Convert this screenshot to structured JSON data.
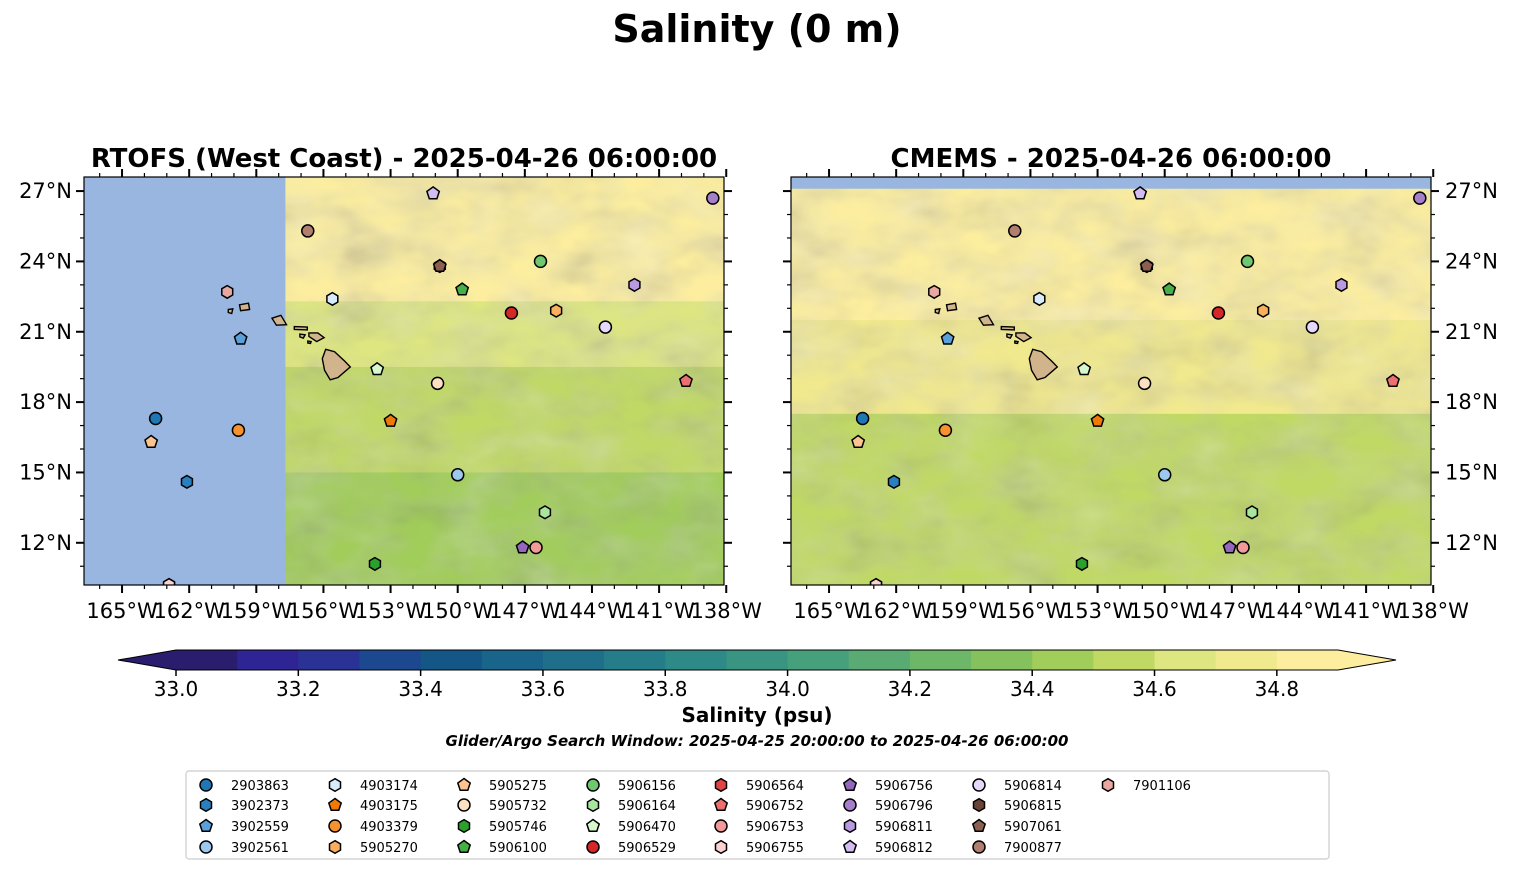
{
  "figure": {
    "title": "Salinity (0 m)",
    "search_window": "Glider/Argo Search Window: 2025-04-25 20:00:00 to 2025-04-26 06:00:00"
  },
  "chart_data": [
    {
      "type": "heatmap",
      "title": "RTOFS (West Coast) - 2025-04-26 06:00:00",
      "x_ticks": [
        "165°W",
        "162°W",
        "159°W",
        "156°W",
        "153°W",
        "150°W",
        "147°W",
        "144°W",
        "141°W",
        "138°W"
      ],
      "y_ticks": [
        "27°N",
        "24°N",
        "21°N",
        "18°N",
        "15°N",
        "12°N"
      ],
      "xlim": [
        -166.7,
        -138.1
      ],
      "ylim": [
        10.2,
        27.6
      ],
      "no_data_region": {
        "lon_max": -157.7,
        "color": "#98b6e0"
      },
      "regimes": [
        {
          "lat_min": 22.3,
          "salinity": 34.95
        },
        {
          "lat_min": 19.5,
          "salinity": 34.65
        },
        {
          "lat_min": 15.0,
          "salinity": 34.5
        },
        {
          "lat_min": 10.2,
          "salinity": 34.4
        }
      ]
    },
    {
      "type": "heatmap",
      "title": "CMEMS - 2025-04-26 06:00:00",
      "x_ticks": [
        "165°W",
        "162°W",
        "159°W",
        "156°W",
        "153°W",
        "150°W",
        "147°W",
        "144°W",
        "141°W",
        "138°W"
      ],
      "y_ticks": [
        "27°N",
        "24°N",
        "21°N",
        "18°N",
        "15°N",
        "12°N"
      ],
      "xlim": [
        -166.7,
        -138.1
      ],
      "ylim": [
        10.2,
        27.6
      ],
      "no_data_region": {
        "lat_min": 27.1,
        "color": "#98b6e0"
      },
      "regimes": [
        {
          "lat_min": 21.5,
          "salinity": 34.95
        },
        {
          "lat_min": 17.5,
          "salinity": 34.7
        },
        {
          "lat_min": 10.2,
          "salinity": 34.5
        }
      ]
    }
  ],
  "colorbar": {
    "label": "Salinity (psu)",
    "min": 33.0,
    "max": 34.9,
    "step": 0.1,
    "ticks": [
      "33.0",
      "33.2",
      "33.4",
      "33.6",
      "33.8",
      "34.0",
      "34.2",
      "34.4",
      "34.6",
      "34.8"
    ],
    "colors": [
      "#2b1d6d",
      "#2e2494",
      "#2b3296",
      "#1c4890",
      "#145787",
      "#19648b",
      "#1f6f8b",
      "#267d8a",
      "#2e8a86",
      "#3a9482",
      "#47a07c",
      "#59ab73",
      "#6cb768",
      "#85c15c",
      "#a1cd5a",
      "#c0d965",
      "#dde680",
      "#f1e98d",
      "#fcee9e"
    ],
    "extend_under": "#2b1d6d",
    "extend_over": "#fcee9e"
  },
  "legend": {
    "entries": [
      {
        "label": "2903863",
        "marker": "circle",
        "color": "#1f77b4"
      },
      {
        "label": "3902373",
        "marker": "hexagon",
        "color": "#2a7fbf"
      },
      {
        "label": "3902559",
        "marker": "pentagon",
        "color": "#5aa0da"
      },
      {
        "label": "3902561",
        "marker": "circle",
        "color": "#9ec9ef"
      },
      {
        "label": "4903174",
        "marker": "hexagon",
        "color": "#d7ebfb"
      },
      {
        "label": "4903175",
        "marker": "pentagon",
        "color": "#f07a08"
      },
      {
        "label": "4903379",
        "marker": "circle",
        "color": "#f8922e"
      },
      {
        "label": "5905270",
        "marker": "hexagon",
        "color": "#fbae5c"
      },
      {
        "label": "5905275",
        "marker": "pentagon",
        "color": "#fcc48e"
      },
      {
        "label": "5905732",
        "marker": "circle",
        "color": "#fde0c4"
      },
      {
        "label": "5905746",
        "marker": "hexagon",
        "color": "#2ca02c"
      },
      {
        "label": "5906100",
        "marker": "pentagon",
        "color": "#45b045"
      },
      {
        "label": "5906156",
        "marker": "circle",
        "color": "#6fc86f"
      },
      {
        "label": "5906164",
        "marker": "hexagon",
        "color": "#a8e6a0"
      },
      {
        "label": "5906470",
        "marker": "pentagon",
        "color": "#d6f8cc"
      },
      {
        "label": "5906529",
        "marker": "circle",
        "color": "#d62728"
      },
      {
        "label": "5906564",
        "marker": "hexagon",
        "color": "#e04444"
      },
      {
        "label": "5906752",
        "marker": "pentagon",
        "color": "#ec7070"
      },
      {
        "label": "5906753",
        "marker": "circle",
        "color": "#f29a9a"
      },
      {
        "label": "5906755",
        "marker": "hexagon",
        "color": "#fcd2d2"
      },
      {
        "label": "5906756",
        "marker": "pentagon",
        "color": "#9467bd"
      },
      {
        "label": "5906796",
        "marker": "circle",
        "color": "#a57fcc"
      },
      {
        "label": "5906811",
        "marker": "hexagon",
        "color": "#b99ae0"
      },
      {
        "label": "5906812",
        "marker": "pentagon",
        "color": "#d2bcf2"
      },
      {
        "label": "5906814",
        "marker": "circle",
        "color": "#e6d8fb"
      },
      {
        "label": "5906815",
        "marker": "hexagon",
        "color": "#6b4438"
      },
      {
        "label": "5907061",
        "marker": "pentagon",
        "color": "#8c5f51"
      },
      {
        "label": "7900877",
        "marker": "circle",
        "color": "#b07f70"
      },
      {
        "label": "7901106",
        "marker": "hexagon",
        "color": "#e8a7a0"
      }
    ]
  },
  "observations": [
    {
      "id": "2903863",
      "lon": -163.5,
      "lat": 17.3
    },
    {
      "id": "3902373",
      "lon": -162.1,
      "lat": 14.6
    },
    {
      "id": "3902559",
      "lon": -159.7,
      "lat": 20.7
    },
    {
      "id": "3902561",
      "lon": -150.0,
      "lat": 14.9
    },
    {
      "id": "4903174",
      "lon": -155.6,
      "lat": 22.4
    },
    {
      "id": "4903175",
      "lon": -153.0,
      "lat": 17.2
    },
    {
      "id": "4903379",
      "lon": -159.8,
      "lat": 16.8
    },
    {
      "id": "5905270",
      "lon": -145.6,
      "lat": 21.9
    },
    {
      "id": "5905275",
      "lon": -163.7,
      "lat": 16.3
    },
    {
      "id": "5905732",
      "lon": -150.9,
      "lat": 18.8
    },
    {
      "id": "5905746",
      "lon": -153.7,
      "lat": 11.1
    },
    {
      "id": "5906100",
      "lon": -149.8,
      "lat": 22.8
    },
    {
      "id": "5906156",
      "lon": -146.3,
      "lat": 24.0
    },
    {
      "id": "5906164",
      "lon": -146.1,
      "lat": 13.3
    },
    {
      "id": "5906470",
      "lon": -153.6,
      "lat": 19.4
    },
    {
      "id": "5906529",
      "lon": -147.6,
      "lat": 21.8
    },
    {
      "id": "5906564",
      "lon": -162.9,
      "lat": 10.2
    },
    {
      "id": "5906752",
      "lon": -139.8,
      "lat": 18.9
    },
    {
      "id": "5906753",
      "lon": -146.5,
      "lat": 11.8
    },
    {
      "id": "5906755",
      "lon": -162.9,
      "lat": 10.2
    },
    {
      "id": "5906756",
      "lon": -147.1,
      "lat": 11.8
    },
    {
      "id": "5906796",
      "lon": -138.6,
      "lat": 26.7
    },
    {
      "id": "5906811",
      "lon": -142.1,
      "lat": 23.0
    },
    {
      "id": "5906812",
      "lon": -151.1,
      "lat": 26.9
    },
    {
      "id": "5906814",
      "lon": -143.4,
      "lat": 21.2
    },
    {
      "id": "5906815",
      "lon": -150.8,
      "lat": 23.8
    },
    {
      "id": "5907061",
      "lon": -150.8,
      "lat": 23.8
    },
    {
      "id": "7900877",
      "lon": -156.7,
      "lat": 25.3
    },
    {
      "id": "7901106",
      "lon": -160.3,
      "lat": 22.7
    }
  ],
  "land": {
    "fill": "#d2b48c",
    "islands": [
      {
        "name": "Hawaii",
        "pts": [
          [
            -155.9,
            20.25
          ],
          [
            -155.5,
            20.15
          ],
          [
            -155.05,
            19.75
          ],
          [
            -154.8,
            19.5
          ],
          [
            -155.35,
            19.05
          ],
          [
            -155.7,
            18.95
          ],
          [
            -155.95,
            19.35
          ],
          [
            -156.05,
            19.85
          ]
        ]
      },
      {
        "name": "Maui",
        "pts": [
          [
            -156.65,
            20.95
          ],
          [
            -156.25,
            20.95
          ],
          [
            -155.97,
            20.75
          ],
          [
            -156.3,
            20.58
          ],
          [
            -156.65,
            20.8
          ]
        ]
      },
      {
        "name": "Molokai",
        "pts": [
          [
            -157.3,
            21.22
          ],
          [
            -156.72,
            21.2
          ],
          [
            -156.72,
            21.08
          ],
          [
            -157.3,
            21.1
          ]
        ]
      },
      {
        "name": "Lanai",
        "pts": [
          [
            -157.05,
            20.9
          ],
          [
            -156.82,
            20.87
          ],
          [
            -156.9,
            20.73
          ],
          [
            -157.05,
            20.78
          ]
        ]
      },
      {
        "name": "Oahu",
        "pts": [
          [
            -158.3,
            21.58
          ],
          [
            -157.9,
            21.7
          ],
          [
            -157.65,
            21.3
          ],
          [
            -158.1,
            21.28
          ]
        ]
      },
      {
        "name": "Kauai",
        "pts": [
          [
            -159.75,
            22.15
          ],
          [
            -159.35,
            22.22
          ],
          [
            -159.3,
            21.95
          ],
          [
            -159.7,
            21.9
          ]
        ]
      },
      {
        "name": "Niihau",
        "pts": [
          [
            -160.25,
            21.95
          ],
          [
            -160.05,
            21.98
          ],
          [
            -160.1,
            21.78
          ],
          [
            -160.25,
            21.82
          ]
        ]
      },
      {
        "name": "Kahoolawe",
        "pts": [
          [
            -156.7,
            20.6
          ],
          [
            -156.55,
            20.58
          ],
          [
            -156.58,
            20.5
          ],
          [
            -156.7,
            20.52
          ]
        ]
      }
    ]
  }
}
